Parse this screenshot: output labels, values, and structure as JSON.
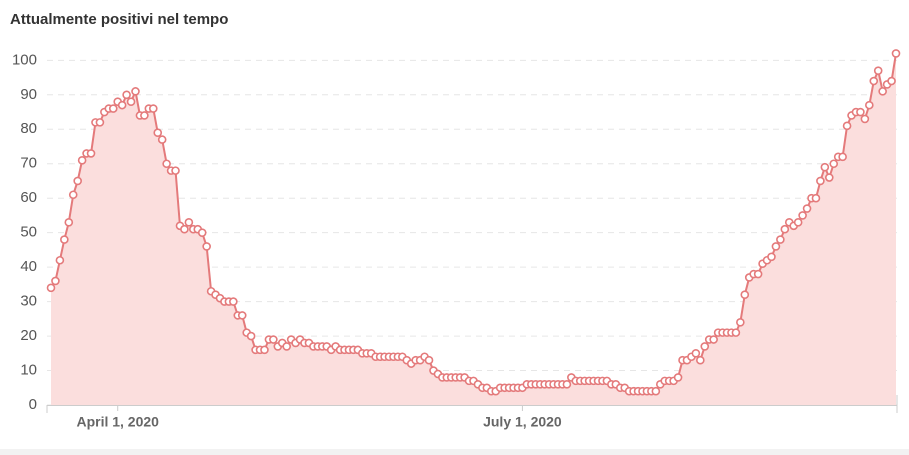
{
  "chart_data": {
    "type": "line",
    "title": "Attualmente positivi nel tempo",
    "color": "#e47a7b",
    "fill_color": "#fbdedd",
    "grid": true,
    "x": [
      "2020-03-17",
      "2020-03-18",
      "2020-03-19",
      "2020-03-20",
      "2020-03-21",
      "2020-03-22",
      "2020-03-23",
      "2020-03-24",
      "2020-03-25",
      "2020-03-26",
      "2020-03-27",
      "2020-03-28",
      "2020-03-29",
      "2020-03-30",
      "2020-03-31",
      "2020-04-01",
      "2020-04-02",
      "2020-04-03",
      "2020-04-04",
      "2020-04-05",
      "2020-04-06",
      "2020-04-07",
      "2020-04-08",
      "2020-04-09",
      "2020-04-10",
      "2020-04-11",
      "2020-04-12",
      "2020-04-13",
      "2020-04-14",
      "2020-04-15",
      "2020-04-16",
      "2020-04-17",
      "2020-04-18",
      "2020-04-19",
      "2020-04-20",
      "2020-04-21",
      "2020-04-22",
      "2020-04-23",
      "2020-04-24",
      "2020-04-25",
      "2020-04-26",
      "2020-04-27",
      "2020-04-28",
      "2020-04-29",
      "2020-04-30",
      "2020-05-01",
      "2020-05-02",
      "2020-05-03",
      "2020-05-04",
      "2020-05-05",
      "2020-05-06",
      "2020-05-07",
      "2020-05-08",
      "2020-05-09",
      "2020-05-10",
      "2020-05-11",
      "2020-05-12",
      "2020-05-13",
      "2020-05-14",
      "2020-05-15",
      "2020-05-16",
      "2020-05-17",
      "2020-05-18",
      "2020-05-19",
      "2020-05-20",
      "2020-05-21",
      "2020-05-22",
      "2020-05-23",
      "2020-05-24",
      "2020-05-25",
      "2020-05-26",
      "2020-05-27",
      "2020-05-28",
      "2020-05-29",
      "2020-05-30",
      "2020-05-31",
      "2020-06-01",
      "2020-06-02",
      "2020-06-03",
      "2020-06-04",
      "2020-06-05",
      "2020-06-06",
      "2020-06-07",
      "2020-06-08",
      "2020-06-09",
      "2020-06-10",
      "2020-06-11",
      "2020-06-12",
      "2020-06-13",
      "2020-06-14",
      "2020-06-15",
      "2020-06-16",
      "2020-06-17",
      "2020-06-18",
      "2020-06-19",
      "2020-06-20",
      "2020-06-21",
      "2020-06-22",
      "2020-06-23",
      "2020-06-24",
      "2020-06-25",
      "2020-06-26",
      "2020-06-27",
      "2020-06-28",
      "2020-06-29",
      "2020-06-30",
      "2020-07-01",
      "2020-07-02",
      "2020-07-03",
      "2020-07-04",
      "2020-07-05",
      "2020-07-06",
      "2020-07-07",
      "2020-07-08",
      "2020-07-09",
      "2020-07-10",
      "2020-07-11",
      "2020-07-12",
      "2020-07-13",
      "2020-07-14",
      "2020-07-15",
      "2020-07-16",
      "2020-07-17",
      "2020-07-18",
      "2020-07-19",
      "2020-07-20",
      "2020-07-21",
      "2020-07-22",
      "2020-07-23",
      "2020-07-24",
      "2020-07-25",
      "2020-07-26",
      "2020-07-27",
      "2020-07-28",
      "2020-07-29",
      "2020-07-30",
      "2020-07-31",
      "2020-08-01",
      "2020-08-02",
      "2020-08-03",
      "2020-08-04",
      "2020-08-05",
      "2020-08-06",
      "2020-08-07",
      "2020-08-08",
      "2020-08-09",
      "2020-08-10",
      "2020-08-11",
      "2020-08-12",
      "2020-08-13",
      "2020-08-14",
      "2020-08-15",
      "2020-08-16",
      "2020-08-17",
      "2020-08-18",
      "2020-08-19",
      "2020-08-20",
      "2020-08-21",
      "2020-08-22",
      "2020-08-23",
      "2020-08-24",
      "2020-08-25",
      "2020-08-26",
      "2020-08-27",
      "2020-08-28",
      "2020-08-29",
      "2020-08-30",
      "2020-08-31",
      "2020-09-01",
      "2020-09-02",
      "2020-09-03",
      "2020-09-04",
      "2020-09-05",
      "2020-09-06",
      "2020-09-07",
      "2020-09-08",
      "2020-09-09",
      "2020-09-10",
      "2020-09-11",
      "2020-09-12",
      "2020-09-13",
      "2020-09-14",
      "2020-09-15",
      "2020-09-16",
      "2020-09-17",
      "2020-09-18",
      "2020-09-19",
      "2020-09-20",
      "2020-09-21",
      "2020-09-22",
      "2020-09-23"
    ],
    "values": [
      34,
      36,
      42,
      48,
      53,
      61,
      65,
      71,
      73,
      73,
      82,
      82,
      85,
      86,
      86,
      88,
      87,
      90,
      88,
      91,
      84,
      84,
      86,
      86,
      79,
      77,
      70,
      68,
      68,
      52,
      51,
      53,
      51,
      51,
      50,
      46,
      33,
      32,
      31,
      30,
      30,
      30,
      26,
      26,
      21,
      20,
      16,
      16,
      16,
      19,
      19,
      17,
      18,
      17,
      19,
      18,
      19,
      18,
      18,
      17,
      17,
      17,
      17,
      16,
      17,
      16,
      16,
      16,
      16,
      16,
      15,
      15,
      15,
      14,
      14,
      14,
      14,
      14,
      14,
      14,
      13,
      12,
      13,
      13,
      14,
      13,
      10,
      9,
      8,
      8,
      8,
      8,
      8,
      8,
      7,
      7,
      6,
      5,
      5,
      4,
      4,
      5,
      5,
      5,
      5,
      5,
      5,
      6,
      6,
      6,
      6,
      6,
      6,
      6,
      6,
      6,
      6,
      8,
      7,
      7,
      7,
      7,
      7,
      7,
      7,
      7,
      6,
      6,
      5,
      5,
      4,
      4,
      4,
      4,
      4,
      4,
      4,
      6,
      7,
      7,
      7,
      8,
      13,
      13,
      14,
      15,
      13,
      17,
      19,
      19,
      21,
      21,
      21,
      21,
      21,
      24,
      32,
      37,
      38,
      38,
      41,
      42,
      43,
      46,
      48,
      51,
      53,
      52,
      53,
      55,
      57,
      60,
      60,
      65,
      69,
      66,
      70,
      72,
      72,
      81,
      84,
      85,
      85,
      83,
      87,
      94,
      97,
      91,
      93,
      94,
      102
    ],
    "xlim": [
      "2020-03-17",
      "2020-09-23"
    ],
    "xticks": [
      {
        "value": "2020-04-01",
        "label": "April 1, 2020"
      },
      {
        "value": "2020-07-01",
        "label": "July 1, 2020"
      }
    ],
    "ylim": [
      0,
      103
    ],
    "yticks": [
      0,
      10,
      20,
      30,
      40,
      50,
      60,
      70,
      80,
      90,
      100
    ]
  }
}
